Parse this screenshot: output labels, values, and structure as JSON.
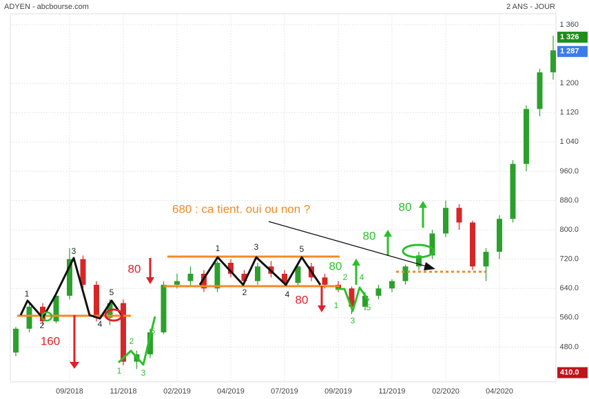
{
  "chart_data": {
    "type": "candlestick",
    "title": "ADYEN - abcbourse.com",
    "subtitle": "2 ANS - JOUR",
    "categories": [
      null,
      null,
      null,
      null,
      "09/2018",
      null,
      null,
      null,
      "11/2018",
      null,
      null,
      null,
      "02/2019",
      null,
      null,
      null,
      "04/2019",
      null,
      null,
      null,
      "07/2019",
      null,
      null,
      null,
      "09/2019",
      null,
      null,
      null,
      "11/2019",
      null,
      null,
      null,
      "02/2020",
      null,
      null,
      null,
      "04/2020",
      null,
      null,
      null,
      null
    ],
    "open": [
      465,
      530,
      590,
      550,
      620,
      720,
      650,
      560,
      600,
      440,
      460,
      520,
      650,
      660,
      680,
      640,
      710,
      680,
      660,
      700,
      680,
      655,
      700,
      670,
      650,
      640,
      590,
      620,
      640,
      660,
      700,
      730,
      790,
      860,
      820,
      700,
      740,
      830,
      980,
      1130,
      1230
    ],
    "high": [
      535,
      605,
      600,
      630,
      750,
      730,
      660,
      610,
      610,
      470,
      530,
      660,
      680,
      700,
      690,
      715,
      720,
      690,
      710,
      715,
      690,
      710,
      710,
      680,
      660,
      645,
      630,
      650,
      665,
      705,
      740,
      800,
      880,
      870,
      825,
      750,
      840,
      990,
      1140,
      1240,
      1330
    ],
    "low": [
      455,
      520,
      540,
      545,
      610,
      640,
      550,
      540,
      430,
      420,
      450,
      515,
      640,
      645,
      630,
      630,
      670,
      650,
      650,
      670,
      645,
      645,
      660,
      640,
      630,
      570,
      580,
      610,
      630,
      650,
      690,
      720,
      780,
      800,
      690,
      660,
      720,
      820,
      960,
      1110,
      1210
    ],
    "close": [
      530,
      590,
      550,
      620,
      720,
      650,
      560,
      600,
      440,
      460,
      520,
      650,
      660,
      680,
      640,
      710,
      680,
      660,
      700,
      680,
      655,
      700,
      670,
      650,
      640,
      590,
      620,
      640,
      660,
      700,
      730,
      790,
      860,
      820,
      700,
      740,
      830,
      980,
      1130,
      1230,
      1290
    ],
    "up_color": "#2ca02c",
    "down_color": "#d62728",
    "ylim": [
      385,
      1390
    ],
    "yticks": [
      {
        "value": 1360,
        "label": "1 360"
      },
      {
        "value": 1200,
        "label": "1 200"
      },
      {
        "value": 1120,
        "label": "1 120"
      },
      {
        "value": 1040,
        "label": "1 040"
      },
      {
        "value": 960,
        "label": "960.0"
      },
      {
        "value": 880,
        "label": "880.0"
      },
      {
        "value": 800,
        "label": "800.0"
      },
      {
        "value": 720,
        "label": "720.0"
      },
      {
        "value": 640,
        "label": "640.0"
      },
      {
        "value": 560,
        "label": "560.0"
      },
      {
        "value": 480,
        "label": "480.0"
      }
    ],
    "grid": true,
    "price_tags": [
      {
        "value": 1326,
        "label": "1 326",
        "color": "#1e8f1e"
      },
      {
        "value": 1287,
        "label": "1 287",
        "color": "#3b7de8"
      },
      {
        "value": 410,
        "label": "410.0",
        "color": "#c0141a"
      }
    ],
    "annotations": [
      "680 : ca tient. oui ou non ?",
      "160",
      "80",
      "80",
      "80",
      "80",
      "80",
      "1",
      "2",
      "3",
      "4",
      "5",
      "1",
      "3",
      "5",
      "2",
      "4",
      "1",
      "2",
      "3",
      "5",
      "1",
      "2",
      "3",
      "4",
      "5"
    ]
  }
}
